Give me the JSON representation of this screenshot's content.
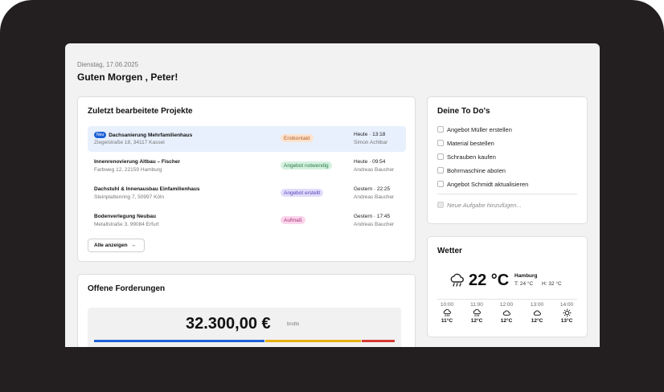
{
  "header": {
    "date": "Dienstag, 17.06.2025",
    "greeting": "Guten Morgen , Peter!"
  },
  "projects": {
    "title": "Zuletzt bearbeitete Projekte",
    "new_badge": "Neu",
    "items": [
      {
        "name": "Dachsanierung Mehrfamilienhaus",
        "address": "Ziegelstraße 18, 34117 Kassel",
        "status": "Erstkontakt",
        "time": "Heute · 13:18",
        "person": "Simon Achtbar"
      },
      {
        "name": "Innenrenovierung Altbau – Fischer",
        "address": "Farbweg 12, 22159 Hamburg",
        "status": "Angebot notwendig",
        "time": "Heute · 09:54",
        "person": "Andreas Baucher"
      },
      {
        "name": "Dachstuhl & Innenausbau Einfamilienhaus",
        "address": "Steinplattenring 7, 50997 Köln",
        "status": "Angebot erstellt",
        "time": "Gestern · 22:25",
        "person": "Andreas Baucher"
      },
      {
        "name": "Bodenverlegung Neubau",
        "address": "Metallstraße 3, 99084 Erfurt",
        "status": "Aufmaß",
        "time": "Gestern · 17:45",
        "person": "Andreas Baucher"
      }
    ],
    "status_colors": {
      "Erstkontakt": {
        "bg": "#fde3cf",
        "fg": "#b45a1c"
      },
      "Angebot notwendig": {
        "bg": "#d3f1df",
        "fg": "#2d7a4b"
      },
      "Angebot erstellt": {
        "bg": "#e2dcfb",
        "fg": "#5a45b8"
      },
      "Aufmaß": {
        "bg": "#fbd6ec",
        "fg": "#a8337a"
      }
    },
    "show_all": "Alle anzeigen"
  },
  "claims": {
    "title": "Offene Forderungen",
    "amount": "32.300,00 €",
    "amount_suffix": "brutto",
    "segments": [
      {
        "fraction": 0.57,
        "color": "#1f62d6"
      },
      {
        "fraction": 0.32,
        "color": "#e6b012"
      },
      {
        "fraction": 0.11,
        "color": "#d43a32"
      }
    ]
  },
  "todos": {
    "title": "Deine To Do's",
    "items": [
      "Angebot Müller erstellen",
      "Material bestellen",
      "Schrauben kaufen",
      "Bohrmaschine aboIen",
      "Angebot Schmidt aktualisieren"
    ],
    "new_placeholder": "Neue Aufgabe hinzufügen..."
  },
  "weather": {
    "title": "Wetter",
    "temp": "22 °C",
    "city": "Hamburg",
    "low": "T: 24 °C",
    "high": "H: 32 °C",
    "current_icon": "rain-cloud-icon",
    "hourly": [
      {
        "time": "10:00",
        "temp": "11°C",
        "icon": "rain-cloud-icon"
      },
      {
        "time": "11:00",
        "temp": "12°C",
        "icon": "rain-cloud-icon"
      },
      {
        "time": "12:00",
        "temp": "12°C",
        "icon": "cloud-icon"
      },
      {
        "time": "13:00",
        "temp": "12°C",
        "icon": "cloud-icon"
      },
      {
        "time": "14:00",
        "temp": "13°C",
        "icon": "sun-icon"
      }
    ]
  }
}
